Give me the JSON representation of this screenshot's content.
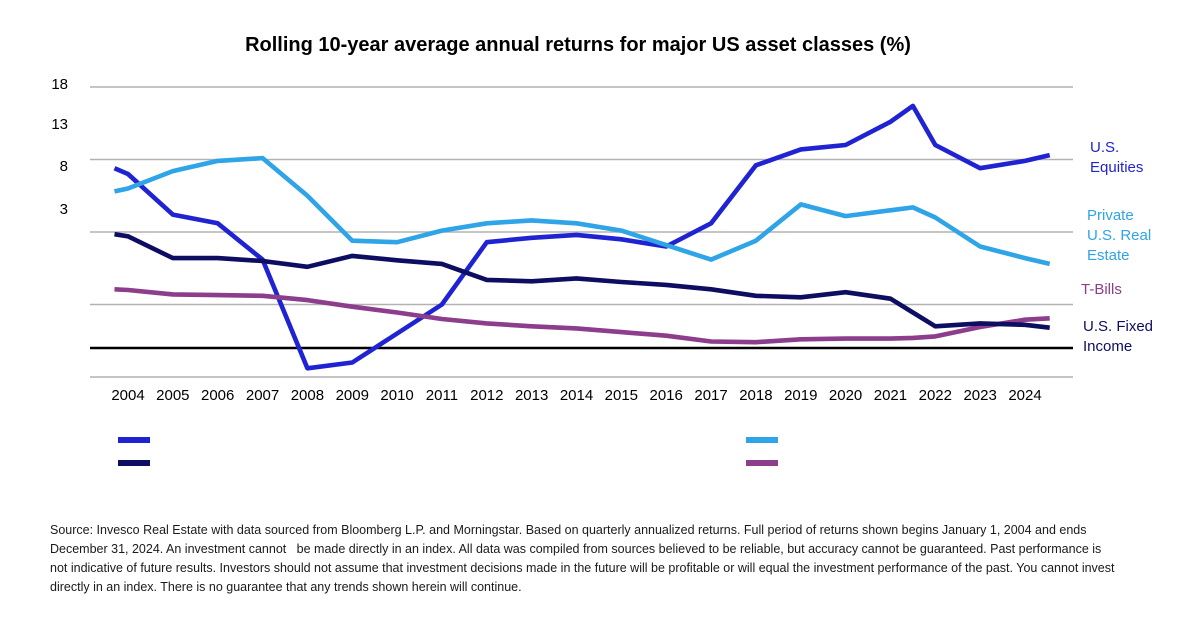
{
  "title": "Rolling 10-year average annual returns for major US asset classes (%)",
  "chart_data": {
    "type": "line",
    "x": [
      2003.7,
      2004,
      2005,
      2006,
      2007,
      2008,
      2009,
      2010,
      2011,
      2012,
      2013,
      2014,
      2015,
      2016,
      2017,
      2018,
      2019,
      2020,
      2021,
      2021.5,
      2022,
      2023,
      2024,
      2024.55
    ],
    "x_tick_labels": [
      "2004",
      "2005",
      "2006",
      "2007",
      "2008",
      "2009",
      "2010",
      "2011",
      "2012",
      "2013",
      "2014",
      "2015",
      "2016",
      "2017",
      "2018",
      "2019",
      "2020",
      "2021",
      "2022",
      "2023",
      "2024"
    ],
    "y_tick_labels": [
      "18",
      "13",
      "8",
      "3"
    ],
    "ylim": [
      -2,
      18
    ],
    "gridline_values": [
      18,
      13,
      8,
      3,
      -2
    ],
    "zero_line_value": 0,
    "grid_color": "#b2b2b2",
    "axis_line_color": "#000000",
    "legend_position": "right",
    "series": [
      {
        "name": "U.S. Equities",
        "label_lines": [
          "U.S.",
          "Equities"
        ],
        "color": "#2023D2",
        "values": [
          12.4,
          12.0,
          9.2,
          8.6,
          6.1,
          -1.4,
          -1.0,
          1.0,
          3.0,
          7.3,
          7.6,
          7.8,
          7.5,
          7.0,
          8.6,
          12.6,
          13.7,
          14.0,
          15.6,
          16.7,
          14.0,
          12.4,
          12.9,
          13.3
        ]
      },
      {
        "name": "Private U.S. Real Estate",
        "label_lines": [
          "Private",
          "U.S. Real",
          "Estate"
        ],
        "color": "#2FA4E7",
        "values": [
          10.8,
          11.0,
          12.2,
          12.9,
          13.1,
          10.5,
          7.4,
          7.3,
          8.1,
          8.6,
          8.8,
          8.6,
          8.1,
          7.1,
          6.1,
          7.4,
          9.9,
          9.1,
          9.5,
          9.7,
          9.0,
          7.0,
          6.2,
          5.8
        ]
      },
      {
        "name": "T-Bills",
        "label_lines": [
          "T-Bills"
        ],
        "color": "#8C3D8C",
        "values": [
          4.05,
          4.0,
          3.7,
          3.65,
          3.6,
          3.3,
          2.85,
          2.45,
          2.0,
          1.7,
          1.5,
          1.35,
          1.1,
          0.85,
          0.45,
          0.4,
          0.6,
          0.65,
          0.65,
          0.7,
          0.8,
          1.45,
          1.95,
          2.05
        ]
      },
      {
        "name": "U.S. Fixed Income",
        "label_lines": [
          "U.S. Fixed",
          "Income"
        ],
        "color": "#0D0D62",
        "values": [
          7.85,
          7.7,
          6.2,
          6.2,
          6.0,
          5.6,
          6.35,
          6.05,
          5.8,
          4.7,
          4.6,
          4.8,
          4.55,
          4.35,
          4.05,
          3.6,
          3.5,
          3.85,
          3.4,
          2.45,
          1.5,
          1.7,
          1.6,
          1.4
        ]
      }
    ]
  },
  "source_lines": [
    "Source: Invesco Real Estate with data sourced from Bloomberg L.P. and Morningstar. Based on quarterly annualized returns. Full period of returns shown begins January 1, 2004 and ends",
    "December 31, 2024. An investment cannot   be made directly in an index. All data was compiled from sources believed to be reliable, but accuracy cannot be guaranteed. Past performance is",
    "not indicative of future results. Investors should not assume that investment decisions made in the future will be profitable or will equal the investment performance of the past. You cannot invest",
    "directly in an index. There is no guarantee that any trends shown herein will continue."
  ]
}
